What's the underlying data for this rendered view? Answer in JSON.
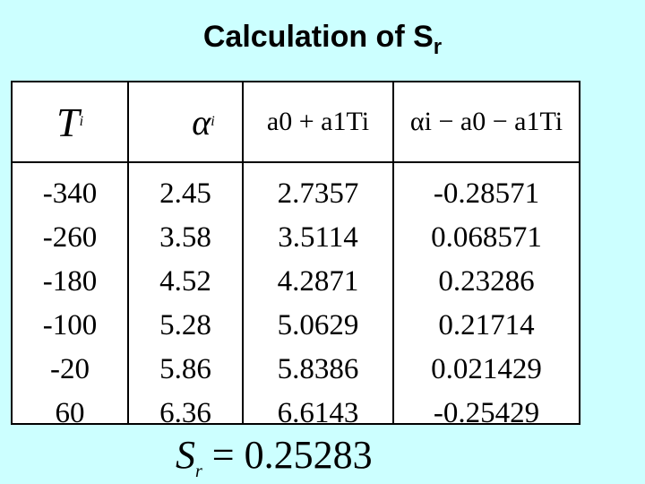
{
  "title": {
    "text": "Calculation of S",
    "subscript": "r"
  },
  "table": {
    "headers": [
      {
        "main": "T",
        "sub": "i"
      },
      {
        "main": "α",
        "sub": "i"
      },
      {
        "expr": "a0 + a1Ti"
      },
      {
        "expr": "αi − a0 − a1Ti"
      }
    ],
    "columns": [
      [
        "-340",
        "-260",
        "-180",
        "-100",
        "-20",
        "60"
      ],
      [
        "2.45",
        "3.58",
        "4.52",
        "5.28",
        "5.86",
        "6.36"
      ],
      [
        "2.7357",
        "3.5114",
        "4.2871",
        "5.0629",
        "5.8386",
        "6.6143"
      ],
      [
        "-0.28571",
        "0.068571",
        "0.23286",
        "0.21714",
        "0.021429",
        "-0.25429"
      ]
    ]
  },
  "result": {
    "symbol": "S",
    "subscript": "r",
    "equals": "= 0.25283"
  }
}
